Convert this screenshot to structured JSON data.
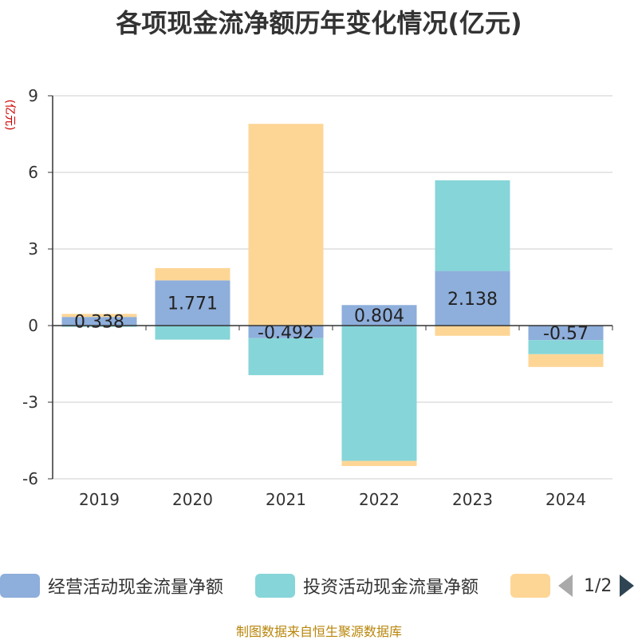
{
  "title": "各项现金流净额历年变化情况(亿元)",
  "footer": "制图数据来自恒生聚源数据库",
  "colors": {
    "operating": "#8eaedb",
    "investing": "#86d5d8",
    "financing": "#fdd696",
    "grid": "#cccccc",
    "axis": "#333333",
    "yunit": "#cc0000"
  },
  "legend": {
    "items": [
      {
        "label": "经营活动现金流量净额"
      },
      {
        "label": "投资活动现金流量净额"
      },
      {
        "label": ""
      }
    ],
    "page": "1/2"
  },
  "chart_data": {
    "type": "bar",
    "stacked": true,
    "categories": [
      "2019",
      "2020",
      "2021",
      "2022",
      "2023",
      "2024"
    ],
    "series": [
      {
        "name": "经营活动现金流量净额",
        "values": [
          0.338,
          1.771,
          -0.492,
          0.804,
          2.138,
          -0.57
        ]
      },
      {
        "name": "投资活动现金流量净额",
        "values": [
          -0.05,
          -0.55,
          -1.45,
          -5.3,
          3.55,
          -0.55
        ]
      },
      {
        "name": "",
        "values": [
          0.12,
          0.48,
          7.9,
          -0.2,
          -0.4,
          -0.5
        ]
      }
    ],
    "data_labels": [
      "0.338",
      "1.771",
      "-0.492",
      "0.804",
      "2.138",
      "-0.57"
    ],
    "yunit": "(亿元)",
    "ylim": [
      -6,
      9
    ],
    "yticks": [
      -6,
      -3,
      0,
      3,
      6,
      9
    ],
    "ytick_labels": [
      "-6",
      "-3",
      "0",
      "3",
      "6",
      "9"
    ],
    "grid": true,
    "legend_position": "bottom"
  }
}
